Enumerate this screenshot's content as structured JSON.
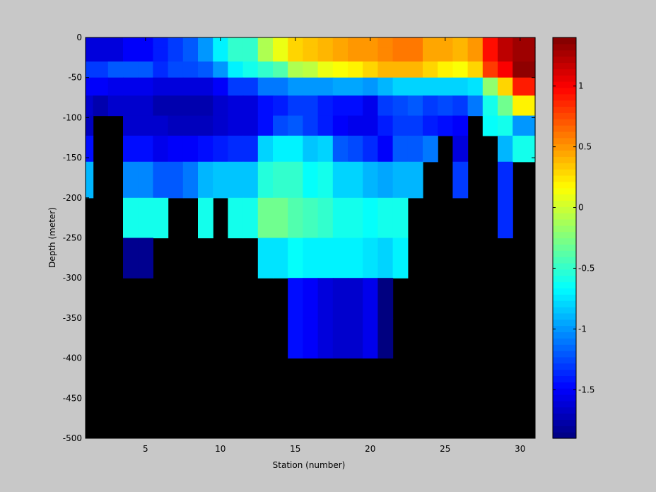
{
  "chart_data": {
    "type": "heatmap",
    "xlabel": "Station (number)",
    "ylabel": "Depth (meter)",
    "xlim": [
      1,
      31
    ],
    "ylim": [
      -500,
      0
    ],
    "x_ticks": [
      5,
      10,
      15,
      20,
      25,
      30
    ],
    "y_ticks": [
      0,
      -50,
      -100,
      -150,
      -200,
      -250,
      -300,
      -350,
      -400,
      -450,
      -500
    ],
    "colorbar": {
      "colormap": "jet",
      "clim": [
        -1.9,
        1.4
      ],
      "ticks": [
        -1.5,
        -1,
        -0.5,
        0,
        0.5,
        1
      ],
      "tick_labels": [
        "-1.5",
        "-1",
        "-0.5",
        "0",
        "0.5",
        "1"
      ]
    },
    "missing_color": "#000000",
    "stations": [
      1,
      2,
      3,
      4,
      5,
      6,
      7,
      8,
      9,
      10,
      11,
      12,
      13,
      14,
      15,
      16,
      17,
      18,
      19,
      20,
      21,
      22,
      23,
      24,
      25,
      26,
      27,
      28,
      29,
      30
    ],
    "depths": [
      -5,
      -20,
      -40,
      -60,
      -85,
      -110,
      -135,
      -175,
      -225,
      -275,
      -325,
      -375
    ],
    "values": [
      [
        -1.6,
        -1.6,
        -1.6,
        -1.5,
        -1.5,
        -1.4,
        -1.3,
        -1.2,
        -1.0,
        -0.7,
        -0.5,
        -0.5,
        -0.1,
        0.1,
        0.3,
        0.35,
        0.4,
        0.45,
        0.5,
        0.5,
        0.55,
        0.6,
        0.6,
        0.45,
        0.45,
        0.4,
        0.5,
        0.95,
        1.2,
        1.3
      ],
      [
        -1.6,
        -1.6,
        -1.6,
        -1.5,
        -1.5,
        -1.4,
        -1.3,
        -1.2,
        -1.0,
        -0.7,
        -0.5,
        -0.5,
        -0.1,
        0.1,
        0.3,
        0.35,
        0.4,
        0.45,
        0.5,
        0.5,
        0.55,
        0.6,
        0.6,
        0.45,
        0.45,
        0.4,
        0.5,
        0.95,
        1.2,
        1.3
      ],
      [
        -1.3,
        -1.3,
        -1.2,
        -1.2,
        -1.2,
        -1.35,
        -1.25,
        -1.25,
        -1.2,
        -1.0,
        -0.7,
        -0.6,
        -0.5,
        -0.4,
        -0.1,
        -0.05,
        0.1,
        0.15,
        0.2,
        0.3,
        0.4,
        0.4,
        0.4,
        0.3,
        0.2,
        0.15,
        0.3,
        0.8,
        1.0,
        1.35
      ],
      [
        -1.5,
        -1.5,
        -1.55,
        -1.55,
        -1.55,
        -1.6,
        -1.6,
        -1.6,
        -1.6,
        -1.5,
        -1.3,
        -1.3,
        -1.1,
        -1.1,
        -1.0,
        -1.0,
        -1.0,
        -0.95,
        -0.95,
        -1.0,
        -0.9,
        -0.8,
        -0.8,
        -0.8,
        -0.8,
        -0.8,
        -0.75,
        -0.2,
        0.3,
        0.9
      ],
      [
        -1.65,
        -1.75,
        -1.65,
        -1.65,
        -1.65,
        -1.75,
        -1.75,
        -1.75,
        -1.75,
        -1.65,
        -1.6,
        -1.6,
        -1.45,
        -1.4,
        -1.3,
        -1.3,
        -1.4,
        -1.45,
        -1.45,
        -1.55,
        -1.3,
        -1.25,
        -1.2,
        -1.3,
        -1.25,
        -1.3,
        -1.1,
        -0.6,
        -0.3,
        0.2
      ],
      [
        -1.7,
        null,
        null,
        -1.65,
        -1.65,
        -1.65,
        -1.7,
        -1.7,
        -1.7,
        -1.65,
        -1.6,
        -1.6,
        -1.45,
        -1.25,
        -1.2,
        -1.3,
        -1.4,
        -1.5,
        -1.55,
        -1.55,
        -1.4,
        -1.3,
        -1.3,
        -1.4,
        -1.45,
        -1.5,
        null,
        -0.65,
        -0.6,
        -1.0
      ],
      [
        -1.45,
        null,
        null,
        -1.45,
        -1.45,
        -1.55,
        -1.5,
        -1.5,
        -1.45,
        -1.4,
        -1.35,
        -1.35,
        -0.8,
        -0.7,
        -0.7,
        -0.85,
        -0.8,
        -1.2,
        -1.25,
        -1.35,
        -1.5,
        -1.2,
        -1.2,
        -1.1,
        null,
        -1.6,
        null,
        null,
        -0.9,
        -0.6
      ],
      [
        -0.9,
        null,
        null,
        -1.05,
        -1.05,
        -1.2,
        -1.2,
        -1.1,
        -0.9,
        -0.85,
        -0.85,
        -0.85,
        -0.55,
        -0.5,
        -0.5,
        -0.65,
        -0.6,
        -0.8,
        -0.8,
        -0.9,
        -0.95,
        -0.9,
        -0.9,
        null,
        null,
        -1.3,
        null,
        null,
        -1.35,
        null
      ],
      [
        null,
        null,
        null,
        -0.6,
        -0.6,
        -0.6,
        null,
        null,
        -0.6,
        null,
        -0.6,
        -0.6,
        -0.3,
        -0.3,
        -0.4,
        -0.45,
        -0.5,
        -0.6,
        -0.6,
        -0.65,
        -0.6,
        -0.6,
        null,
        null,
        null,
        null,
        null,
        null,
        -1.35,
        null
      ],
      [
        null,
        null,
        null,
        -1.85,
        -1.85,
        null,
        null,
        null,
        null,
        null,
        null,
        null,
        -0.75,
        -0.75,
        -0.65,
        -0.7,
        -0.7,
        -0.7,
        -0.7,
        -0.75,
        -0.8,
        -0.7,
        null,
        null,
        null,
        null,
        null,
        null,
        null,
        null
      ],
      [
        null,
        null,
        null,
        null,
        null,
        null,
        null,
        null,
        null,
        null,
        null,
        null,
        null,
        null,
        -1.45,
        -1.5,
        -1.6,
        -1.65,
        -1.65,
        -1.55,
        -1.9,
        null,
        null,
        null,
        null,
        null,
        null,
        null,
        null,
        null
      ],
      [
        null,
        null,
        null,
        null,
        null,
        null,
        null,
        null,
        null,
        null,
        null,
        null,
        null,
        null,
        -1.45,
        -1.5,
        -1.6,
        -1.65,
        -1.65,
        -1.55,
        -1.9,
        null,
        null,
        null,
        null,
        null,
        null,
        null,
        null,
        null
      ]
    ]
  }
}
